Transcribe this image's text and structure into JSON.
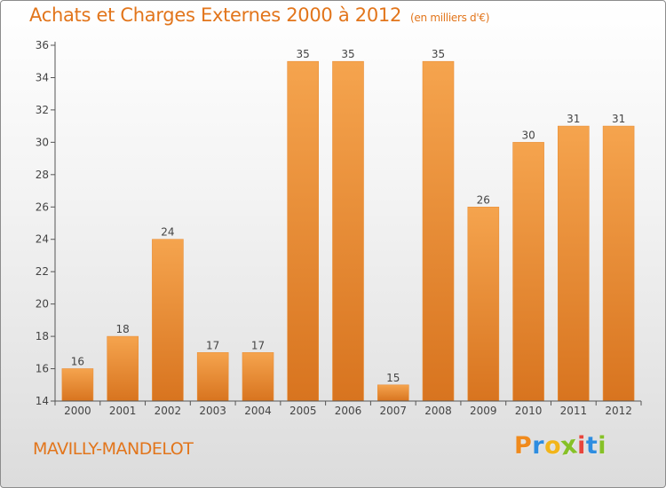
{
  "header": {
    "title": "Achats et Charges Externes 2000 à 2012",
    "unit": "(en milliers d'€)"
  },
  "footer": {
    "place": "MAVILLY-MANDELOT",
    "logo": [
      "P",
      "r",
      "o",
      "x",
      "i",
      "t",
      "i"
    ],
    "logo_colors": [
      "#f08a1c",
      "#2e8de0",
      "#f2b51a",
      "#86c127",
      "#e8453c",
      "#2e8de0",
      "#86c127"
    ]
  },
  "colors": {
    "bar_light": "#f5a44e",
    "bar_dark": "#d8741f",
    "axis": "#555555",
    "title": "#e2751b"
  },
  "chart_data": {
    "type": "bar",
    "categories": [
      "2000",
      "2001",
      "2002",
      "2003",
      "2004",
      "2005",
      "2006",
      "2007",
      "2008",
      "2009",
      "2010",
      "2011",
      "2012"
    ],
    "values": [
      16,
      18,
      24,
      17,
      17,
      35,
      35,
      15,
      35,
      26,
      30,
      31,
      31
    ],
    "ylim": [
      14,
      36
    ],
    "yticks": [
      14,
      16,
      18,
      20,
      22,
      24,
      26,
      28,
      30,
      32,
      34,
      36
    ],
    "grid": false,
    "data_labels": true
  }
}
